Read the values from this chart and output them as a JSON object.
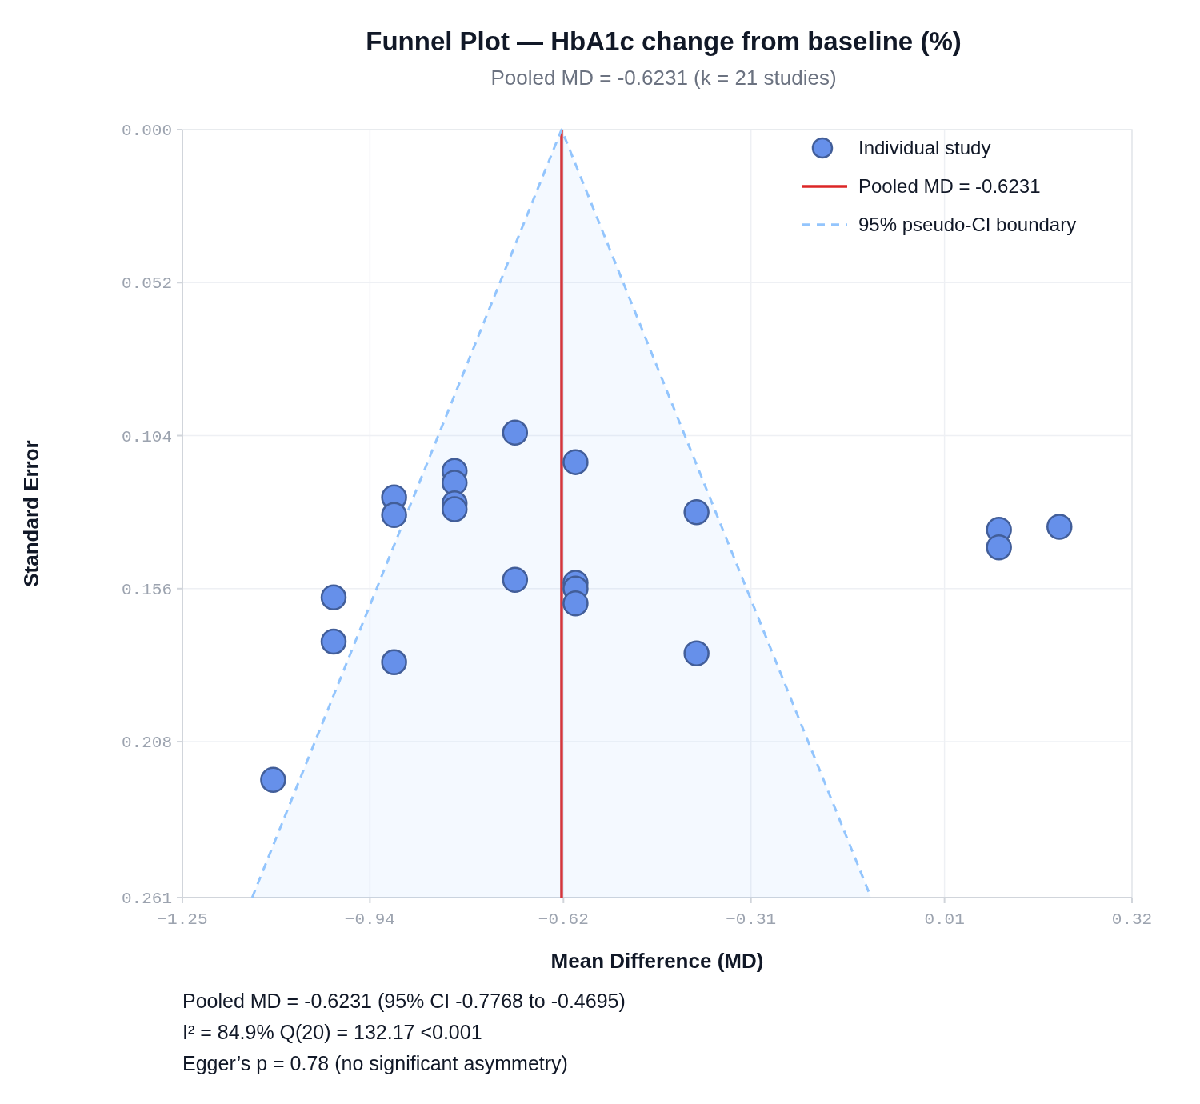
{
  "chart_data": {
    "type": "scatter",
    "title": "Funnel Plot — HbA1c change from baseline (%)",
    "subtitle": "Pooled MD = -0.6231  (k = 21 studies)",
    "xlabel": "Mean Difference (MD)",
    "ylabel": "Standard Error",
    "xlim": [
      -1.25,
      0.32
    ],
    "xticks": [
      {
        "value": -1.25,
        "label": "−1.25"
      },
      {
        "value": -0.94,
        "label": "−0.94"
      },
      {
        "value": -0.62,
        "label": "−0.62"
      },
      {
        "value": -0.31,
        "label": "−0.31"
      },
      0.01,
      0.32
    ],
    "ylim": [
      0.261,
      0
    ],
    "yticks": [
      {
        "value": 0,
        "label": "0.000"
      },
      0.052,
      0.104,
      0.156,
      0.208,
      0.261
    ],
    "grid": true,
    "legend": "top right",
    "marker": "circle",
    "series": [
      {
        "name": "Individual study",
        "color": "#6690ea",
        "x": [
          -0.7,
          -0.6,
          -0.8,
          -0.8,
          -0.9,
          -0.8,
          -0.8,
          -0.9,
          -0.4,
          0.2,
          0.1,
          0.1,
          -0.7,
          -0.6,
          -0.6,
          -0.6,
          -1.0,
          -1.0,
          -0.4,
          -0.9,
          -1.1
        ],
        "values": [
          0.103,
          0.113,
          0.116,
          0.12,
          0.125,
          0.127,
          0.129,
          0.131,
          0.13,
          0.135,
          0.136,
          0.142,
          0.153,
          0.154,
          0.156,
          0.161,
          0.159,
          0.174,
          0.178,
          0.181,
          0.221
        ]
      },
      {
        "name": "Pooled MD = -0.6231",
        "type": "line",
        "line_style": "solid",
        "marker": "none",
        "color": "#dc2626",
        "x": [
          -0.6231,
          -0.6231
        ],
        "values": [
          0.261,
          0
        ]
      },
      {
        "name": "95% pseudo-CI boundary",
        "type": "line",
        "line_style": "dashed",
        "marker": "none",
        "color": "#93c5fd",
        "x": [
          -1.1347,
          -0.6231,
          -0.1115
        ],
        "values": [
          0.261,
          0,
          0.261
        ]
      }
    ],
    "annotations": [
      "Pooled MD = -0.6231 (95% CI -0.7768 to -0.4695)",
      "I² = 84.9%  Q(20) = 132.17  <0.001",
      "Egger’s p = 0.78 (no significant asymmetry)"
    ]
  }
}
